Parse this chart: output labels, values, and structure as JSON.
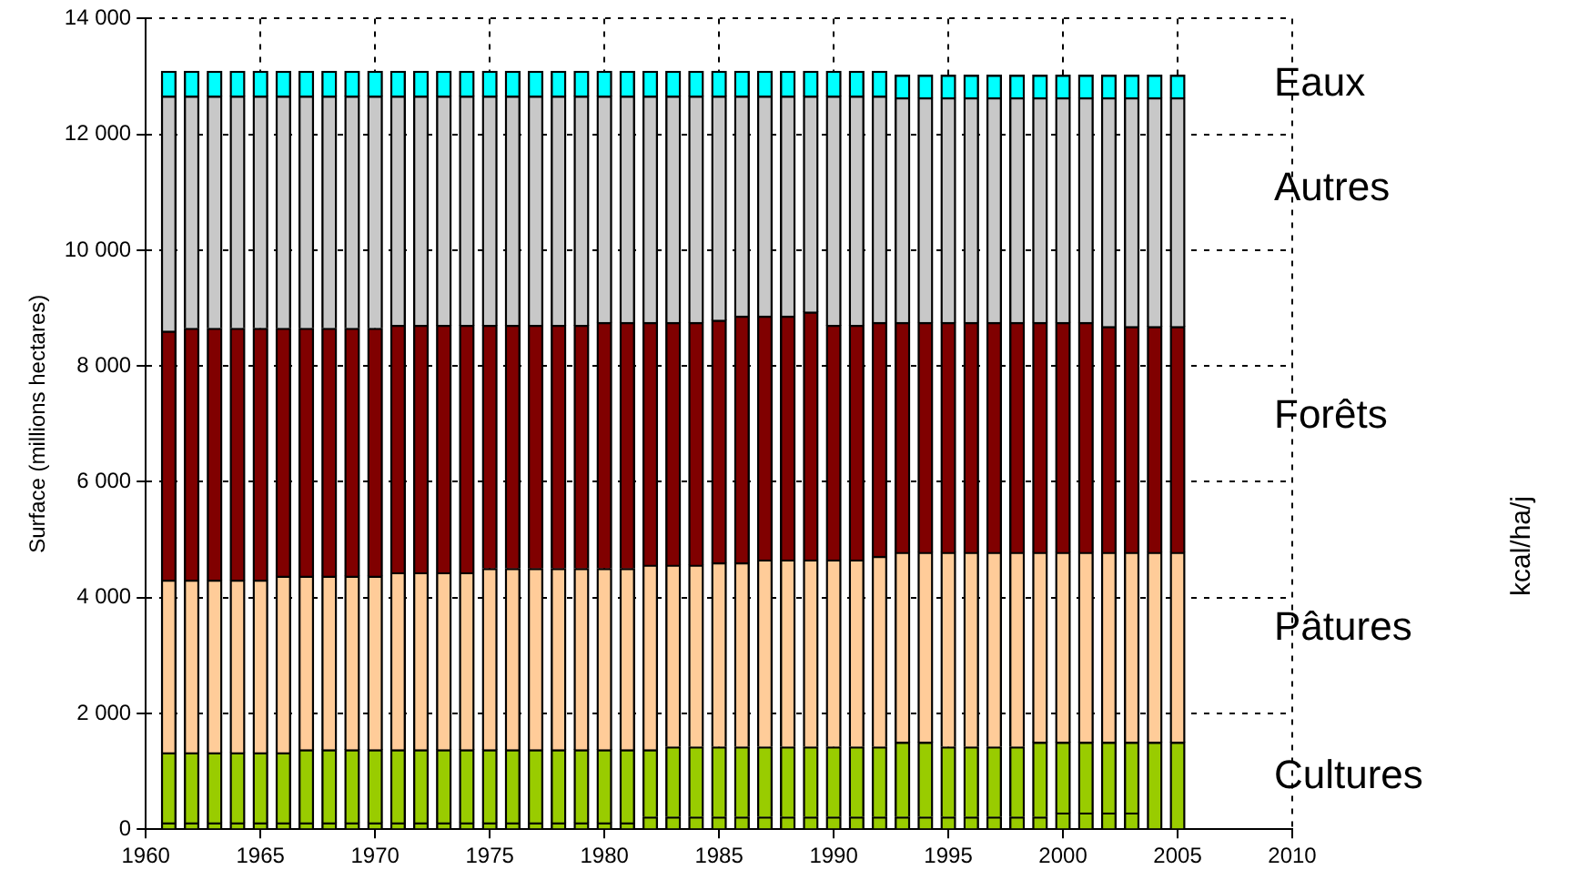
{
  "chart_data": {
    "type": "bar",
    "stacked": true,
    "ylabel": "Surface (millions hectares)",
    "annotations": [
      "kcal/ha/j"
    ],
    "x": [
      1961,
      1962,
      1963,
      1964,
      1965,
      1966,
      1967,
      1968,
      1969,
      1970,
      1971,
      1972,
      1973,
      1974,
      1975,
      1976,
      1977,
      1978,
      1979,
      1980,
      1981,
      1982,
      1983,
      1984,
      1985,
      1986,
      1987,
      1988,
      1989,
      1990,
      1991,
      1992,
      1993,
      1994,
      1995,
      1996,
      1997,
      1998,
      1999,
      2000,
      2001,
      2002,
      2003,
      2004,
      2005
    ],
    "series": [
      {
        "color": "#99cc00",
        "values": [
          110,
          110,
          110,
          110,
          110,
          110,
          110,
          110,
          110,
          110,
          110,
          110,
          110,
          110,
          110,
          110,
          110,
          110,
          110,
          110,
          110,
          210,
          210,
          210,
          210,
          210,
          210,
          210,
          210,
          210,
          210,
          210,
          210,
          210,
          210,
          210,
          210,
          210,
          210,
          280,
          280,
          280,
          280,
          null,
          null
        ]
      },
      {
        "name": "Cultures",
        "color": "#99cc00",
        "values": [
          1210,
          1210,
          1210,
          1210,
          1210,
          1210,
          1260,
          1260,
          1260,
          1260,
          1260,
          1260,
          1260,
          1260,
          1260,
          1260,
          1260,
          1260,
          1260,
          1260,
          1260,
          1160,
          1210,
          1210,
          1210,
          1210,
          1210,
          1210,
          1210,
          1210,
          1210,
          1210,
          1290,
          1290,
          1210,
          1210,
          1210,
          1210,
          1290,
          1220,
          1220,
          1220,
          1220,
          1500,
          1500
        ]
      },
      {
        "name": "Pâtures",
        "color": "#ffcc99",
        "values": [
          2980,
          2980,
          2980,
          2980,
          2980,
          3050,
          3000,
          3000,
          3000,
          3000,
          3060,
          3060,
          3060,
          3060,
          3130,
          3130,
          3130,
          3130,
          3130,
          3130,
          3130,
          3190,
          3140,
          3140,
          3180,
          3180,
          3230,
          3230,
          3230,
          3230,
          3230,
          3290,
          3280,
          3280,
          3360,
          3360,
          3360,
          3360,
          3280,
          3280,
          3280,
          3280,
          3280,
          3280,
          3280
        ]
      },
      {
        "name": "Forêts",
        "color": "#800000",
        "values": [
          4300,
          4350,
          4350,
          4350,
          4350,
          4280,
          4280,
          4280,
          4280,
          4280,
          4270,
          4270,
          4270,
          4270,
          4200,
          4200,
          4200,
          4200,
          4200,
          4250,
          4250,
          4190,
          4190,
          4190,
          4190,
          4260,
          4210,
          4210,
          4280,
          4050,
          4050,
          4040,
          3970,
          3970,
          3970,
          3970,
          3970,
          3970,
          3970,
          3970,
          3970,
          3900,
          3900,
          3900,
          3900
        ]
      },
      {
        "name": "Autres",
        "color": "#c8c8c8",
        "values": [
          4060,
          4010,
          4010,
          4010,
          4010,
          4010,
          4010,
          4010,
          4010,
          4010,
          3960,
          3960,
          3960,
          3960,
          3960,
          3960,
          3960,
          3960,
          3960,
          3910,
          3910,
          3910,
          3910,
          3910,
          3870,
          3800,
          3800,
          3800,
          3730,
          3960,
          3960,
          3910,
          3880,
          3880,
          3880,
          3880,
          3880,
          3880,
          3880,
          3880,
          3880,
          3950,
          3950,
          3950,
          3950
        ]
      },
      {
        "name": "Eaux",
        "color": "#00ffff",
        "values": [
          430,
          430,
          430,
          430,
          430,
          430,
          430,
          430,
          430,
          430,
          430,
          430,
          430,
          430,
          430,
          430,
          430,
          430,
          430,
          430,
          430,
          430,
          430,
          430,
          430,
          430,
          430,
          430,
          430,
          430,
          430,
          430,
          390,
          390,
          390,
          390,
          390,
          390,
          390,
          390,
          390,
          390,
          390,
          390,
          390
        ]
      }
    ],
    "xlim": [
      1960,
      2010
    ],
    "xticks": [
      1960,
      1965,
      1970,
      1975,
      1980,
      1985,
      1990,
      1995,
      2000,
      2005,
      2010
    ],
    "ylim": [
      0,
      14000
    ],
    "yticks": [
      0,
      {
        "value": 2000,
        "label": "2 000"
      },
      {
        "value": 4000,
        "label": "4 000"
      },
      {
        "value": 6000,
        "label": "6 000"
      },
      {
        "value": 8000,
        "label": "8 000"
      },
      {
        "value": 10000,
        "label": "10 000"
      },
      {
        "value": 12000,
        "label": "12 000"
      },
      {
        "value": 14000,
        "label": "14 000"
      }
    ],
    "grid": true,
    "legend": false
  }
}
